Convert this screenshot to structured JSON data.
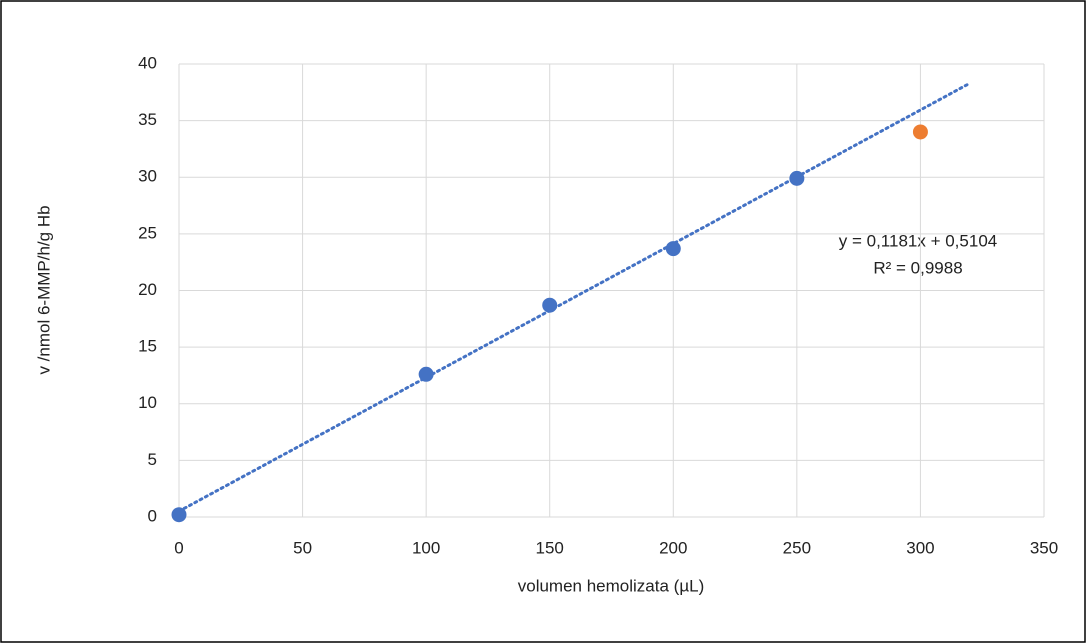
{
  "chart_data": {
    "type": "scatter",
    "xlabel": "volumen hemolizata (µL)",
    "ylabel": "v /nmol 6-MMP/h/g Hb",
    "x": [
      0,
      100,
      150,
      200,
      250,
      300
    ],
    "values": [
      0.2,
      12.6,
      18.7,
      23.7,
      29.9,
      34.0
    ],
    "point_colors": [
      "#4472c4",
      "#4472c4",
      "#4472c4",
      "#4472c4",
      "#4472c4",
      "#ed7d31"
    ],
    "xlim": [
      0,
      350
    ],
    "xticks": [
      0,
      50,
      100,
      150,
      200,
      250,
      300,
      350
    ],
    "ylim": [
      0,
      40
    ],
    "yticks": [
      0,
      5,
      10,
      15,
      20,
      25,
      30,
      35,
      40
    ],
    "grid": true,
    "trendline": {
      "equation": "y = 0,1181x + 0,5104",
      "r_squared": "R² = 0,9988",
      "slope": 0.1181,
      "intercept": 0.5104,
      "x_range": [
        0,
        320
      ],
      "color": "#4472c4"
    }
  }
}
